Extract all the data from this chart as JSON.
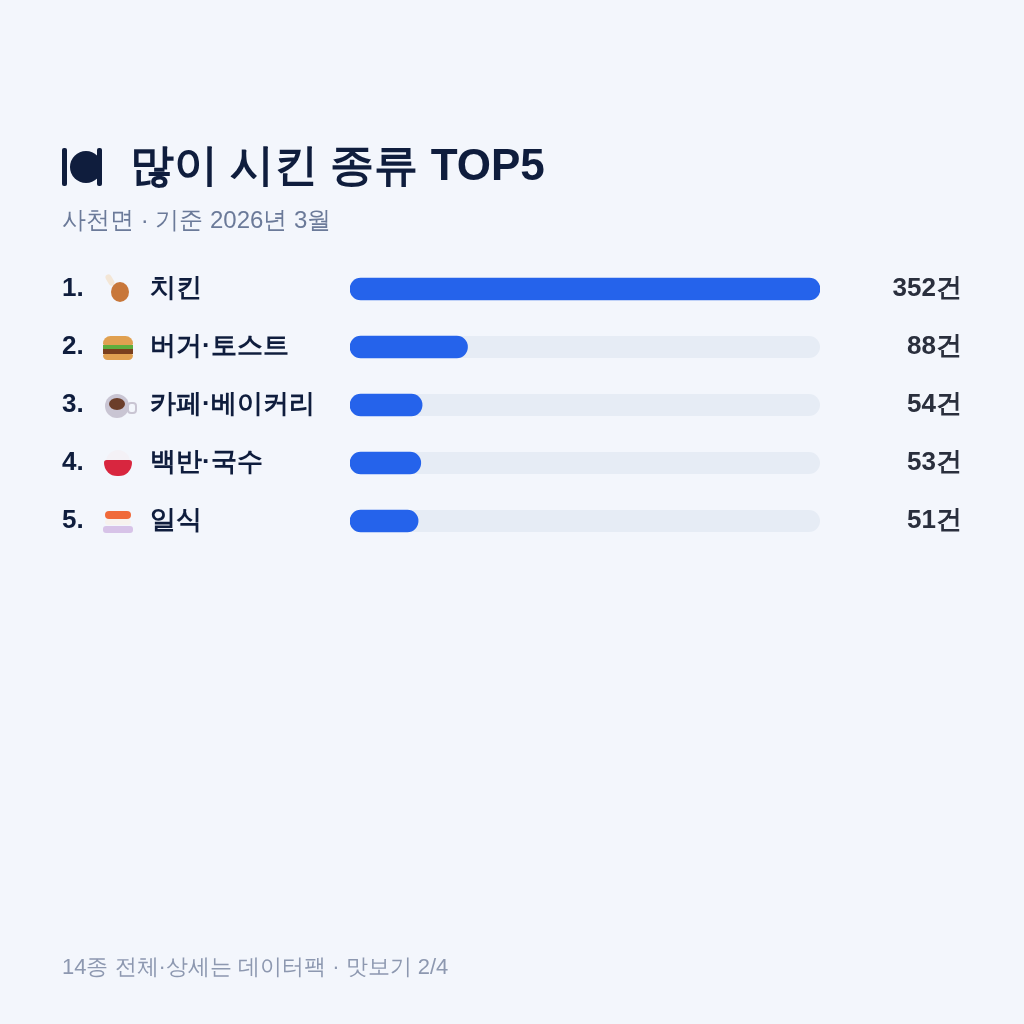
{
  "chart_data": {
    "type": "bar",
    "orientation": "horizontal",
    "title": "많이 시킨 종류 TOP5",
    "subtitle": "사천면 · 기준 2026년 3월",
    "categories": [
      "1. 치킨",
      "2. 버거·토스트",
      "3. 카페·베이커리",
      "4. 백반·국수",
      "5. 일식"
    ],
    "values": [
      352,
      88,
      54,
      53,
      51
    ],
    "value_labels": [
      "352건",
      "88건",
      "54건",
      "53건",
      "51건"
    ],
    "color": "#2563eb",
    "xlim": [
      0,
      352
    ],
    "tick_labels": false,
    "annotations": [
      "14종 전체·상세는 데이터팩 · 맛보기 2/4"
    ]
  }
}
